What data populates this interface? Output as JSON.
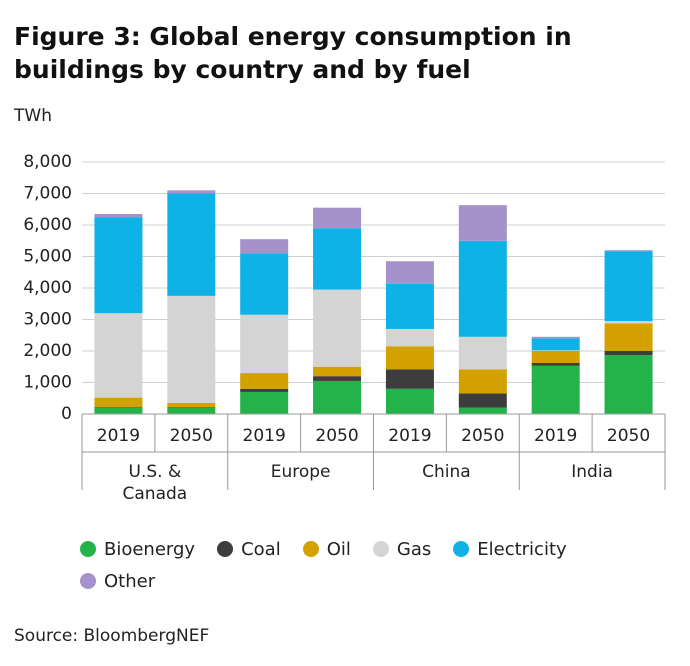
{
  "chart_data": {
    "type": "stacked_bar",
    "title": "Figure 3: Global energy consumption in buildings by country and by fuel",
    "y_axis_label": "TWh",
    "source": "Source: BloombergNEF",
    "categories": [
      "2019",
      "2050",
      "2019",
      "2050",
      "2019",
      "2050",
      "2019",
      "2050"
    ],
    "groups": [
      "U.S. & Canada",
      "Europe",
      "China",
      "India"
    ],
    "series": [
      {
        "name": "Bioenergy",
        "color": "#24b24b",
        "values": [
          200,
          200,
          700,
          1050,
          800,
          200,
          1530,
          1870
        ]
      },
      {
        "name": "Coal",
        "color": "#3d3d3d",
        "values": [
          20,
          20,
          100,
          150,
          620,
          450,
          90,
          130
        ]
      },
      {
        "name": "Oil",
        "color": "#d3a100",
        "values": [
          300,
          130,
          500,
          300,
          730,
          770,
          380,
          880
        ]
      },
      {
        "name": "Gas",
        "color": "#d4d4d4",
        "values": [
          2680,
          3400,
          1850,
          2450,
          550,
          1030,
          20,
          70
        ]
      },
      {
        "name": "Electricity",
        "color": "#0fb2e6",
        "values": [
          3050,
          3250,
          1950,
          1950,
          1430,
          3050,
          380,
          2220
        ]
      },
      {
        "name": "Other",
        "color": "#a592cb",
        "values": [
          100,
          100,
          450,
          650,
          720,
          1130,
          50,
          30
        ]
      }
    ],
    "ylim": [
      0,
      8000
    ],
    "yticks": [
      0,
      {
        "value": 1000,
        "label": "1,000"
      },
      {
        "value": 2000,
        "label": "2,000"
      },
      {
        "value": 3000,
        "label": "3,000"
      },
      {
        "value": 4000,
        "label": "4,000"
      },
      {
        "value": 5000,
        "label": "5,000"
      },
      {
        "value": 6000,
        "label": "6,000"
      },
      {
        "value": 7000,
        "label": "7,000"
      },
      {
        "value": 8000,
        "label": "8,000"
      }
    ],
    "grid": true
  }
}
